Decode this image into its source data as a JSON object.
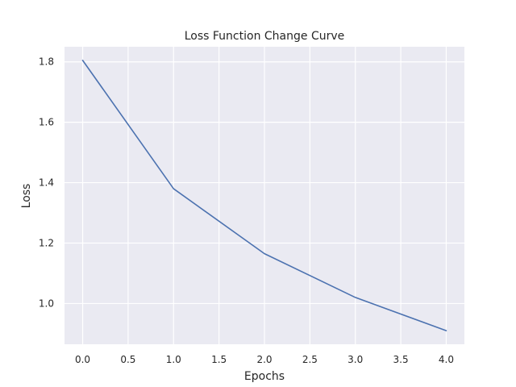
{
  "chart_data": {
    "type": "line",
    "title": "Loss Function Change Curve",
    "xlabel": "Epochs",
    "ylabel": "Loss",
    "xlim": [
      -0.2,
      4.2
    ],
    "ylim": [
      0.865,
      1.85
    ],
    "xticks": [
      0.0,
      0.5,
      1.0,
      1.5,
      2.0,
      2.5,
      3.0,
      3.5,
      4.0
    ],
    "xtick_labels": [
      "0.0",
      "0.5",
      "1.0",
      "1.5",
      "2.0",
      "2.5",
      "3.0",
      "3.5",
      "4.0"
    ],
    "yticks": [
      1.0,
      1.2,
      1.4,
      1.6,
      1.8
    ],
    "ytick_labels": [
      "1.0",
      "1.2",
      "1.4",
      "1.6",
      "1.8"
    ],
    "grid": true,
    "legend": "none",
    "colors": {
      "plot_background": "#eaeaf2",
      "grid": "#ffffff",
      "line": "#4c72b0",
      "text": "#262626"
    },
    "series": [
      {
        "x": [
          0,
          1,
          2,
          3,
          4
        ],
        "y": [
          1.805,
          1.38,
          1.165,
          1.02,
          0.91
        ]
      }
    ]
  }
}
